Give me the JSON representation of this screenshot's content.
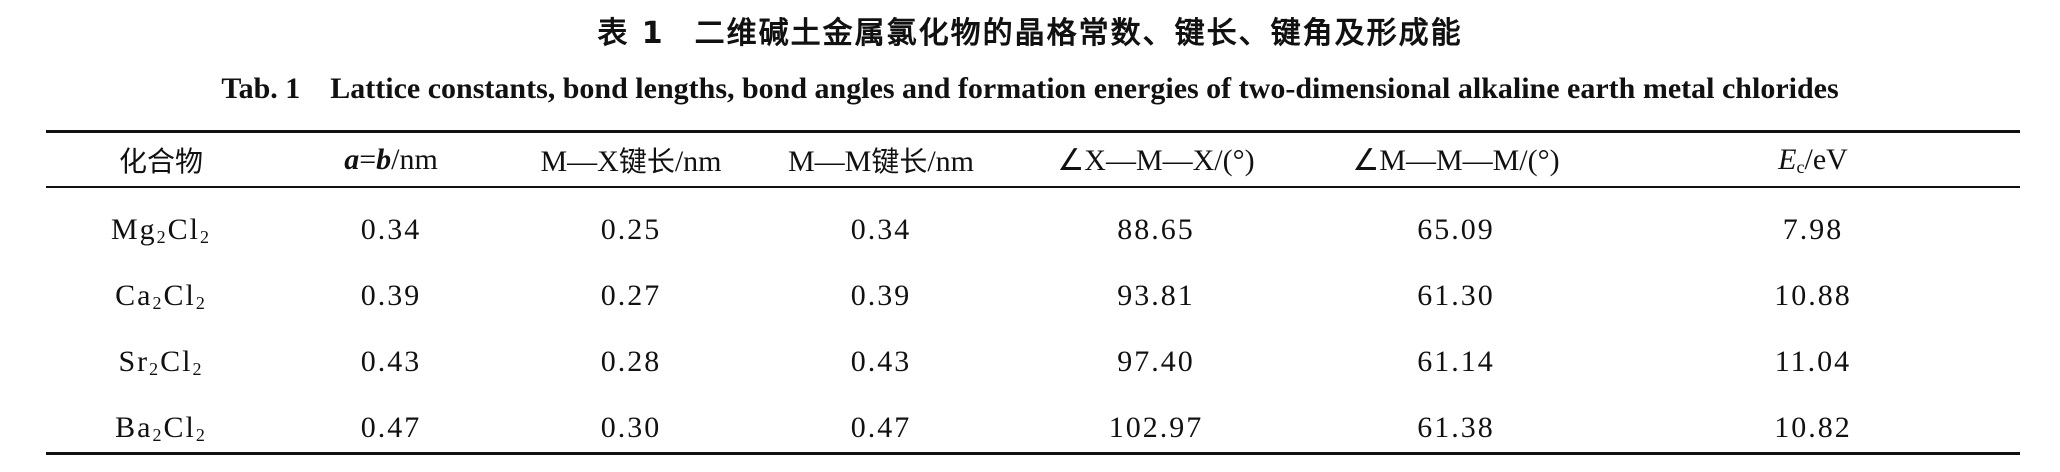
{
  "caption": {
    "cn_number": "表 1",
    "cn_title": "二维碱土金属氯化物的晶格常数、键长、键角及形成能",
    "en_number": "Tab. 1",
    "en_title": "Lattice constants, bond lengths, bond angles and formation energies of two-dimensional alkaline earth metal chlorides"
  },
  "table": {
    "headers": {
      "compound": "化合物",
      "lattice_a": "a",
      "lattice_eq": "=",
      "lattice_b": "b",
      "lattice_unit": "/nm",
      "mx_prefix": "M—X",
      "mx_cn": "键长",
      "mx_unit": "/nm",
      "mm_prefix": "M—M",
      "mm_cn": "键长",
      "mm_unit": "/nm",
      "angle_xmx": "∠X—M—X/(°)",
      "angle_mmm": "∠M—M—M/(°)",
      "energy_symbol": "E",
      "energy_sub": "c",
      "energy_unit": "/eV"
    },
    "rows": [
      {
        "element": "Mg",
        "sub1": "2",
        "cl": "Cl",
        "sub2": "2",
        "a": "0.34",
        "mx": "0.25",
        "mm": "0.34",
        "xmx": "88.65",
        "mmm": "65.09",
        "energy": "7.98"
      },
      {
        "element": "Ca",
        "sub1": "2",
        "cl": "Cl",
        "sub2": "2",
        "a": "0.39",
        "mx": "0.27",
        "mm": "0.39",
        "xmx": "93.81",
        "mmm": "61.30",
        "energy": "10.88"
      },
      {
        "element": "Sr",
        "sub1": "2",
        "cl": "Cl",
        "sub2": "2",
        "a": "0.43",
        "mx": "0.28",
        "mm": "0.43",
        "xmx": "97.40",
        "mmm": "61.14",
        "energy": "11.04"
      },
      {
        "element": "Ba",
        "sub1": "2",
        "cl": "Cl",
        "sub2": "2",
        "a": "0.47",
        "mx": "0.30",
        "mm": "0.47",
        "xmx": "102.97",
        "mmm": "61.38",
        "energy": "10.82"
      }
    ]
  }
}
